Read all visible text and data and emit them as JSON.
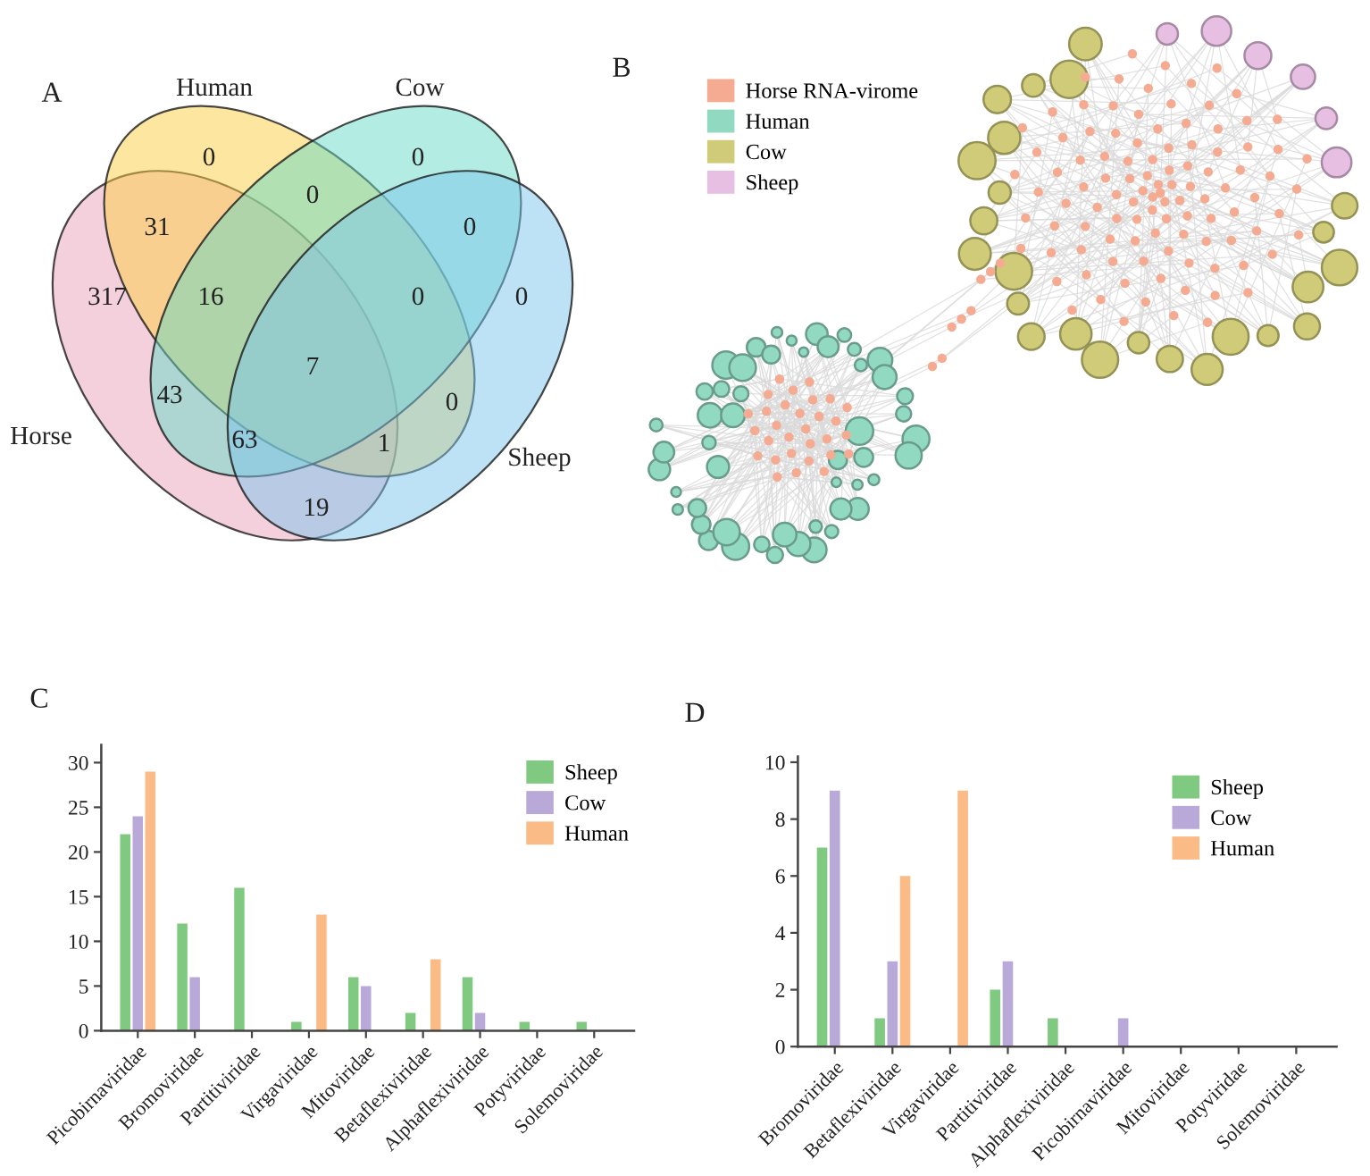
{
  "chart_data": [
    {
      "type": "other",
      "title": "A",
      "categories": [
        "Horse",
        "Human",
        "Cow",
        "Sheep"
      ],
      "colors": [
        "#f4d0dd",
        "#fde6a0",
        "#b2ece2",
        "#bee2f5"
      ],
      "annotations": [
        "0",
        "0",
        "0",
        "31",
        "0",
        "317",
        "16",
        "0",
        "0",
        "7",
        "43",
        "0",
        "63",
        "1",
        "19"
      ]
    },
    {
      "type": "other",
      "title": "B",
      "series": [
        {
          "name": "Horse RNA-virome",
          "color": "#f4ab92"
        },
        {
          "name": "Human",
          "color": "#92d9c2"
        },
        {
          "name": "Cow",
          "color": "#cfcb78"
        },
        {
          "name": "Sheep",
          "color": "#e6bfe3"
        }
      ],
      "legend": "top left"
    },
    {
      "type": "bar",
      "title": "C",
      "categories": [
        "Picobirnaviridae",
        "Bromoviridae",
        "Partitiviridae",
        "Virgaviridae",
        "Mitoviridae",
        "Betaflexiviridae",
        "Alphaflexiviridae",
        "Potyviridae",
        "Solemoviridae"
      ],
      "series": [
        {
          "name": "Sheep",
          "color": "#80c980",
          "values": [
            22,
            12,
            16,
            1,
            6,
            2,
            6,
            1,
            1
          ]
        },
        {
          "name": "Cow",
          "color": "#b8a9d9",
          "values": [
            24,
            6,
            0,
            0,
            5,
            0,
            2,
            0,
            0
          ]
        },
        {
          "name": "Human",
          "color": "#fbbb86",
          "values": [
            29,
            0,
            0,
            13,
            0,
            8,
            0,
            0,
            0
          ]
        }
      ],
      "ylim": [
        0,
        32
      ],
      "yticks": [
        0,
        5,
        10,
        15,
        20,
        25,
        30
      ],
      "legend": "top right"
    },
    {
      "type": "bar",
      "title": "D",
      "categories": [
        "Bromoviridae",
        "Betaflexiviridae",
        "Virgaviridae",
        "Partitiviridae",
        "Alphaflexiviridae",
        "Picobirnaviridae",
        "Mitoviridae",
        "Potyviridae",
        "Solemoviridae"
      ],
      "series": [
        {
          "name": "Sheep",
          "color": "#80c980",
          "values": [
            7,
            1,
            0,
            2,
            1,
            0,
            0,
            0,
            0
          ]
        },
        {
          "name": "Cow",
          "color": "#b8a9d9",
          "values": [
            9,
            3,
            0,
            3,
            0,
            1,
            0,
            0,
            0
          ]
        },
        {
          "name": "Human",
          "color": "#fbbb86",
          "values": [
            0,
            6,
            9,
            0,
            0,
            0,
            0,
            0,
            0
          ]
        }
      ],
      "ylim": [
        0,
        10.2
      ],
      "yticks": [
        0,
        2,
        4,
        6,
        8,
        10
      ],
      "legend": "top right"
    }
  ]
}
